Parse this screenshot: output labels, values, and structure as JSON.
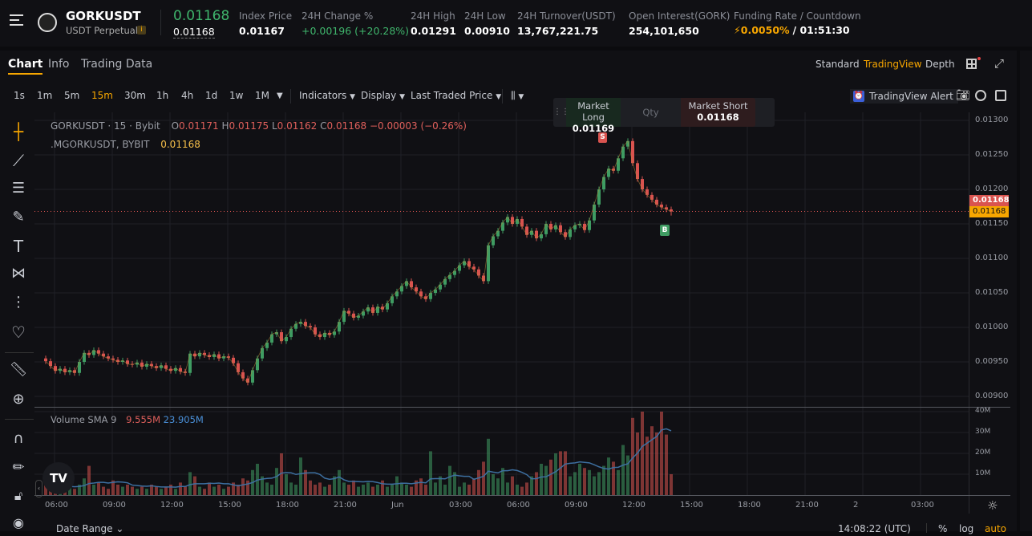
{
  "header": {
    "symbol": "GORKUSDT",
    "contract_type": "USDT Perpetual",
    "last_price": "0.01168",
    "mark_price": "0.01168",
    "stats": [
      {
        "label": "Index Price",
        "value": "0.01167"
      },
      {
        "label": "24H Change %",
        "value": "+0.00196 (+20.28%)"
      },
      {
        "label": "24H High",
        "value": "0.01291"
      },
      {
        "label": "24H Low",
        "value": "0.00910"
      },
      {
        "label": "24H Turnover(USDT)",
        "value": "13,767,221.75"
      },
      {
        "label": "Open Interest(GORK)",
        "value": "254,101,650"
      }
    ],
    "funding_label": "Funding Rate / Countdown",
    "funding_rate": "0.0050%",
    "countdown": "/ 01:51:30"
  },
  "tabs": [
    "Chart",
    "Info",
    "Trading Data"
  ],
  "views": [
    "Standard",
    "TradingView",
    "Depth"
  ],
  "timeframes": [
    "1s",
    "1m",
    "5m",
    "15m",
    "30m",
    "1h",
    "4h",
    "1d",
    "1w",
    "1M"
  ],
  "active_timeframe": "15m",
  "toolbar": {
    "indicators": "Indicators",
    "display": "Display",
    "price_type": "Last Traded Price",
    "alert": "TradingView Alert"
  },
  "quick_trade": {
    "long_label": "Market Long",
    "long_price": "0.01169",
    "qty": "Qty",
    "short_label": "Market Short",
    "short_price": "0.01168"
  },
  "legend": {
    "title": "GORKUSDT · 15 · Bybit",
    "o": "0.01171",
    "h": "0.01175",
    "l": "0.01162",
    "c": "0.01168",
    "change": "−0.00003 (−0.26%)",
    "mark_title": ".MGORKUSDT, BYBIT",
    "mark_value": "0.01168",
    "volume_title": "Volume SMA 9",
    "vol_a": "9.555M",
    "vol_b": "23.905M"
  },
  "markers": {
    "sell": "S",
    "buy": "B"
  },
  "price_tags": {
    "last": "0.01168",
    "mark": "0.01168"
  },
  "bottom": {
    "date_range": "Date Range",
    "clock": "14:08:22 (UTC)",
    "pct": "%",
    "log": "log",
    "auto": "auto"
  },
  "colors": {
    "up": "#3f9c62",
    "down": "#d9534f",
    "accent": "#f7a600"
  },
  "chart_data": {
    "type": "candlestick",
    "timeframe": "15m",
    "price_ticks": [
      "0.01300",
      "0.01250",
      "0.01200",
      "0.01150",
      "0.01100",
      "0.01050",
      "0.01000",
      "0.00950",
      "0.00900"
    ],
    "ylim": [
      0.009,
      0.013
    ],
    "volume_ticks": [
      "40M",
      "30M",
      "20M",
      "10M"
    ],
    "time_ticks": [
      "06:00",
      "09:00",
      "12:00",
      "15:00",
      "18:00",
      "21:00",
      "Jun",
      "03:00",
      "06:00",
      "09:00",
      "12:00",
      "15:00",
      "18:00",
      "21:00",
      "2",
      "03:00"
    ],
    "first_open": 0.00955,
    "closes": [
      0.00951,
      0.00944,
      0.00937,
      0.0094,
      0.00935,
      0.00938,
      0.00934,
      0.0095,
      0.00963,
      0.0096,
      0.00967,
      0.00962,
      0.00958,
      0.00955,
      0.00953,
      0.0095,
      0.00952,
      0.00947,
      0.00946,
      0.00949,
      0.00943,
      0.00947,
      0.00944,
      0.00941,
      0.00945,
      0.0094,
      0.00937,
      0.00941,
      0.00936,
      0.00934,
      0.00962,
      0.00958,
      0.00963,
      0.0096,
      0.00957,
      0.00961,
      0.00955,
      0.00958,
      0.00956,
      0.00948,
      0.00935,
      0.00926,
      0.0092,
      0.00938,
      0.00955,
      0.0097,
      0.00978,
      0.0099,
      0.00993,
      0.0098,
      0.00986,
      0.00998,
      0.01005,
      0.01008,
      0.01002,
      0.01,
      0.0099,
      0.00986,
      0.00992,
      0.00989,
      0.00994,
      0.01008,
      0.01024,
      0.0102,
      0.01014,
      0.01017,
      0.01023,
      0.01029,
      0.01021,
      0.0103,
      0.01026,
      0.01035,
      0.01045,
      0.01052,
      0.0106,
      0.01067,
      0.01058,
      0.01052,
      0.01045,
      0.01041,
      0.0105,
      0.01055,
      0.01062,
      0.0107,
      0.01076,
      0.01082,
      0.0109,
      0.01096,
      0.01088,
      0.01084,
      0.01075,
      0.01067,
      0.01119,
      0.01132,
      0.0114,
      0.01152,
      0.0116,
      0.0115,
      0.01157,
      0.01146,
      0.01134,
      0.0114,
      0.01129,
      0.01135,
      0.0115,
      0.01142,
      0.01148,
      0.01138,
      0.01131,
      0.01142,
      0.01148,
      0.0115,
      0.01141,
      0.01155,
      0.01178,
      0.012,
      0.01218,
      0.0123,
      0.01227,
      0.01245,
      0.01262,
      0.0127,
      0.01238,
      0.01215,
      0.012,
      0.01192,
      0.01185,
      0.01178,
      0.01174,
      0.01171,
      0.01168
    ],
    "volumes_m": [
      5,
      3,
      3,
      4,
      6,
      4,
      3,
      5,
      8,
      14,
      5,
      6,
      4,
      3,
      7,
      5,
      4,
      5,
      4,
      3,
      4,
      3,
      5,
      4,
      3,
      4,
      5,
      3,
      6,
      4,
      11,
      9,
      4,
      3,
      6,
      4,
      5,
      3,
      4,
      6,
      5,
      8,
      7,
      12,
      15,
      9,
      6,
      5,
      13,
      20,
      10,
      6,
      5,
      18,
      12,
      7,
      5,
      6,
      4,
      5,
      9,
      12,
      6,
      5,
      7,
      4,
      5,
      6,
      4,
      5,
      7,
      4,
      5,
      9,
      6,
      5,
      4,
      7,
      8,
      5,
      21,
      6,
      9,
      5,
      14,
      11,
      4,
      6,
      5,
      8,
      12,
      16,
      27,
      10,
      8,
      13,
      6,
      9,
      5,
      4,
      6,
      9,
      11,
      15,
      14,
      17,
      20,
      21,
      21,
      9,
      11,
      15,
      13,
      12,
      9,
      11,
      14,
      18,
      16,
      12,
      24,
      19,
      37,
      30,
      40,
      28,
      33,
      30,
      40,
      29,
      10
    ]
  }
}
